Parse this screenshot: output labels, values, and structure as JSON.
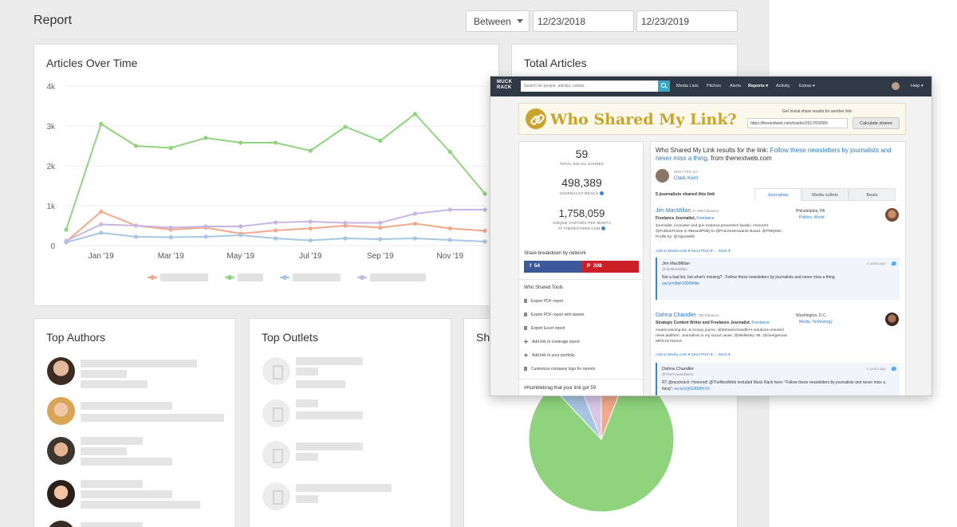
{
  "report": {
    "title": "Report",
    "range_mode": "Between",
    "start_date": "12/23/2018",
    "end_date": "12/23/2019",
    "cards": {
      "articles_over_time": "Articles Over Time",
      "total_articles": "Total Articles",
      "top_authors": "Top Authors",
      "top_outlets": "Top Outlets",
      "shares_partial": "Sha"
    }
  },
  "chart_data": {
    "type": "line",
    "title": "Articles Over Time",
    "x": [
      "Dec '18",
      "Jan '19",
      "Feb '19",
      "Mar '19",
      "Apr '19",
      "May '19",
      "Jun '19",
      "Jul '19",
      "Aug '19",
      "Sep '19",
      "Oct '19",
      "Nov '19",
      "Dec '19"
    ],
    "x_tick_labels": [
      "Jan '19",
      "Mar '19",
      "May '19",
      "Jul '19",
      "Sep '19",
      "Nov '19"
    ],
    "y_tick_labels": [
      "0",
      "1k",
      "2k",
      "3k",
      "4k"
    ],
    "ylim": [
      0,
      4000
    ],
    "grid": true,
    "series": [
      {
        "color": "#8fd47d",
        "values": [
          400,
          3050,
          2500,
          2450,
          2700,
          2580,
          2580,
          2380,
          2980,
          2630,
          3300,
          2350,
          1300
        ]
      },
      {
        "color": "#f2a98b",
        "values": [
          100,
          850,
          500,
          400,
          450,
          300,
          380,
          430,
          500,
          450,
          550,
          430,
          370
        ]
      },
      {
        "color": "#c8b5e2",
        "values": [
          120,
          530,
          500,
          450,
          480,
          480,
          580,
          600,
          570,
          570,
          800,
          900,
          900
        ]
      },
      {
        "color": "#a7c6e2",
        "values": [
          80,
          320,
          220,
          210,
          220,
          260,
          180,
          130,
          180,
          160,
          180,
          140,
          100
        ]
      }
    ],
    "legend_placement": "bottom"
  },
  "pie_data": {
    "type": "pie",
    "slices": [
      {
        "color": "#8fd47d",
        "value": 82
      },
      {
        "color": "#a7c6e2",
        "value": 6
      },
      {
        "color": "#d9c6e8",
        "value": 6
      },
      {
        "color": "#f2a98b",
        "value": 6
      }
    ]
  },
  "muckrack": {
    "logo_line1": "MUCK",
    "logo_line2": "RACK",
    "search_placeholder": "Search for people, articles, outlets",
    "nav": [
      "Media Lists",
      "Pitches",
      "Alerts",
      "Reports ▾",
      "Activity",
      "Extras ▾"
    ],
    "help": "Help ▾",
    "wsml_title": "Who Shared My Link?",
    "wsml_hint": "Get social share results for another link:",
    "wsml_url": "https://thenextweb.com/insider/2017/03/08/t",
    "calc_button": "Calculate shares",
    "stats": [
      {
        "value": "59",
        "label": "TOTAL SOCIAL SHARES"
      },
      {
        "value": "498,389",
        "label": "JOURNALIST REACH"
      },
      {
        "value": "1,758,059",
        "label1": "UNIQUE VISITORS PER MONTH",
        "label2": "AT THENEXTWEB.COM"
      }
    ],
    "breakdown_label": "Share breakdown by network",
    "facebook_count": "54",
    "pinterest_count": "208",
    "tools_label": "Who Shared Tools",
    "tools": [
      "Export PDF report",
      "Export PDF report with tweets",
      "Export Excel report",
      "Add link to coverage report",
      "Add link to your portfolio",
      "Customize company logo for reports"
    ],
    "humblebrag": "#Humblebrag that your link got 59",
    "results_prefix": "Who Shared My Link results for the link:",
    "results_link": "Follow these newsletters by journalists and never miss a thing,",
    "results_from": " from thenextweb.com",
    "written_by": "WRITTEN BY",
    "author": "Clark Kent",
    "journalists_count": "5 journalists shared this link",
    "tabs": [
      "Journalists",
      "Media outlets",
      "Beats"
    ],
    "journalists": [
      {
        "name": "Jim MacMillan",
        "followers": "57,898 followers",
        "title": "Freelance Journalist,",
        "outlet": "Freelance",
        "bio": "Journalist, innovator and gun violence prevention fanatic. Honored: @PulitzerPrizes to #BestofPhilly to @PHLGeekAwards Board: @PhillyMIC Profile by: @SigneWilk",
        "location": "Philadelphia, PA",
        "beats": "Politics, World",
        "actions": "Add to Media Lists ▾    Send Pitch ▾    ··· More ▾",
        "tweet_name": "Jim MacMillan",
        "tweet_handle": "@JimMacMillan",
        "tweet_time": "2 years ago",
        "tweet_text": "Not a bad list, but what's missing? ..Follow these newsletters by journalists and never miss a thing",
        "tweet_link": "ow.ly/m8pF309HANe"
      },
      {
        "name": "Dahna Chandler",
        "followers": "799 followers",
        "title": "Strategic Content Writer and Freelance Journalist,",
        "outlet": "Freelance",
        "bio": "Award-winning biz. & money journo. @dahnamchandler's solutions-oriented news platform. Journalism is my social cause. @Wellesley '95. @Georgetown MPS'19 #GenX",
        "location": "Washington, D.C.",
        "beats": "Media, Technology",
        "actions": "Add to Media Lists ▾    Send Pitch ▾    ··· More ▾",
        "tweet_name": "Dahna Chandler",
        "tweet_handle": "@TheForwardStory",
        "tweet_time": "2 years ago",
        "tweet_text": "RT @muckrack: Honored! @TheNextWeb included Muck Rack here: \"Follow these newsletters by journalists and never miss a thing\":",
        "tweet_link": "ow.ly/zQtG309HLVx"
      }
    ]
  }
}
